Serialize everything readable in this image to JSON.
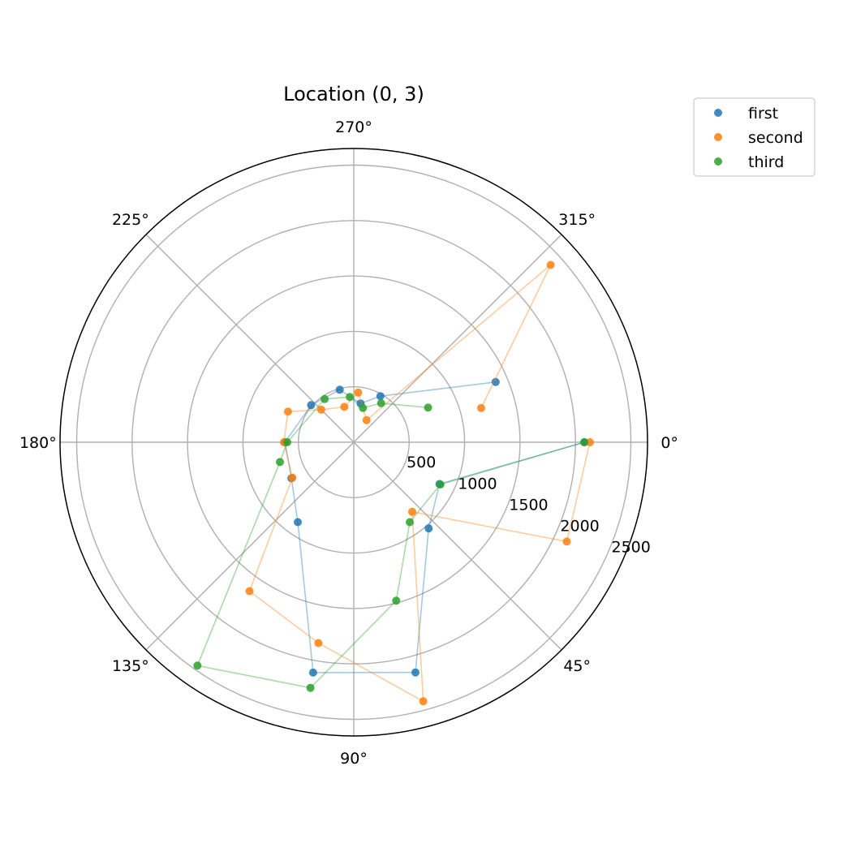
{
  "chart_data": {
    "type": "scatter",
    "projection": "polar",
    "title": "Location (0, 3)",
    "theta_direction": "clockwise",
    "theta_zero": "east",
    "r_max": 2650,
    "r_ticks": [
      500,
      1000,
      1500,
      2000,
      2500
    ],
    "r_tick_labels": [
      "500",
      "1000",
      "1500",
      "2000",
      "2500"
    ],
    "theta_ticks": [
      0,
      45,
      90,
      135,
      180,
      225,
      270,
      315
    ],
    "theta_tick_labels": [
      "0°",
      "45°",
      "90°",
      "135°",
      "180°",
      "225°",
      "270°",
      "315°"
    ],
    "grid": true,
    "legend_position": "outside-top-right",
    "connect_points": true,
    "series": [
      {
        "name": "first",
        "color": "#1f77b4",
        "points": [
          {
            "theta": 0,
            "r": 2080
          },
          {
            "theta": 26,
            "r": 860
          },
          {
            "theta": 49,
            "r": 1030
          },
          {
            "theta": 75,
            "r": 2150
          },
          {
            "theta": 100,
            "r": 2110
          },
          {
            "theta": 125,
            "r": 880
          },
          {
            "theta": 150,
            "r": 650
          },
          {
            "theta": 180,
            "r": 620
          },
          {
            "theta": 221,
            "r": 510
          },
          {
            "theta": 255,
            "r": 490
          },
          {
            "theta": 280,
            "r": 355
          },
          {
            "theta": 300,
            "r": 480
          },
          {
            "theta": 337,
            "r": 1390
          }
        ]
      },
      {
        "name": "second",
        "color": "#ff7f0e",
        "points": [
          {
            "theta": 0,
            "r": 2130
          },
          {
            "theta": 25,
            "r": 2120
          },
          {
            "theta": 50,
            "r": 820
          },
          {
            "theta": 75,
            "r": 2420
          },
          {
            "theta": 100,
            "r": 1840
          },
          {
            "theta": 125,
            "r": 1640
          },
          {
            "theta": 150,
            "r": 640
          },
          {
            "theta": 180,
            "r": 630
          },
          {
            "theta": 205,
            "r": 655
          },
          {
            "theta": 225,
            "r": 415
          },
          {
            "theta": 255,
            "r": 330
          },
          {
            "theta": 275,
            "r": 450
          },
          {
            "theta": 300,
            "r": 230
          },
          {
            "theta": 318,
            "r": 2390
          },
          {
            "theta": 345,
            "r": 1190
          }
        ]
      },
      {
        "name": "third",
        "color": "#2ca02c",
        "points": [
          {
            "theta": 0,
            "r": 2080
          },
          {
            "theta": 26,
            "r": 870
          },
          {
            "theta": 55,
            "r": 880
          },
          {
            "theta": 75,
            "r": 1480
          },
          {
            "theta": 100,
            "r": 2250
          },
          {
            "theta": 125,
            "r": 2460
          },
          {
            "theta": 165,
            "r": 690
          },
          {
            "theta": 180,
            "r": 600
          },
          {
            "theta": 236,
            "r": 470
          },
          {
            "theta": 265,
            "r": 410
          },
          {
            "theta": 285,
            "r": 320
          },
          {
            "theta": 305,
            "r": 430
          },
          {
            "theta": 335,
            "r": 740
          }
        ]
      }
    ]
  }
}
